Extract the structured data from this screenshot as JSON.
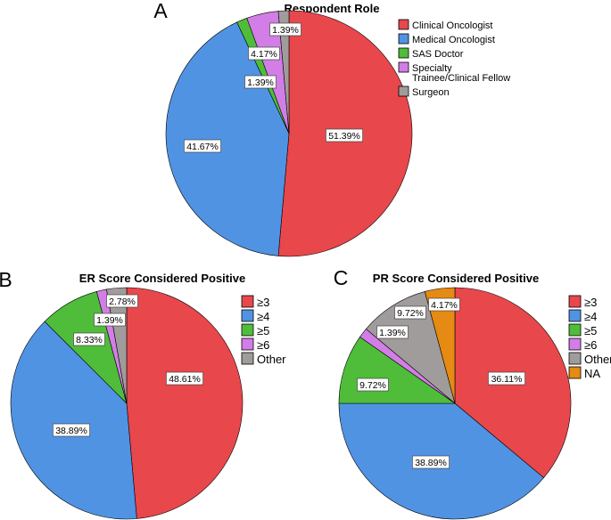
{
  "chart_data": [
    {
      "panel": "A",
      "type": "pie",
      "title": "Respondent Role",
      "labels": [
        "Clinical Oncologist",
        "Medical Oncologist",
        "SAS Doctor",
        "Specialty Trainee/Clinical Fellow",
        "Surgeon"
      ],
      "legend_lines": [
        [
          "Clinical Oncologist"
        ],
        [
          "Medical Oncologist"
        ],
        [
          "SAS Doctor"
        ],
        [
          "Specialty",
          "Trainee/Clinical Fellow"
        ],
        [
          "Surgeon"
        ]
      ],
      "values": [
        51.39,
        41.67,
        1.39,
        4.17,
        1.39
      ],
      "data_labels": [
        "51.39%",
        "41.67%",
        "1.39%",
        "4.17%",
        "1.39%"
      ],
      "colors": [
        "#e8474c",
        "#5193e3",
        "#4fbd3a",
        "#d27ee6",
        "#a09c9c"
      ],
      "legend_position": "right"
    },
    {
      "panel": "B",
      "type": "pie",
      "title": "ER Score Considered Positive",
      "labels": [
        "≥3",
        "≥4",
        "≥5",
        "≥6",
        "Other"
      ],
      "legend_lines": [
        [
          "≥3"
        ],
        [
          "≥4"
        ],
        [
          "≥5"
        ],
        [
          "≥6"
        ],
        [
          "Other"
        ]
      ],
      "values": [
        48.61,
        38.89,
        8.33,
        1.39,
        2.78
      ],
      "data_labels": [
        "48.61%",
        "38.89%",
        "8.33%",
        "1.39%",
        "2.78%"
      ],
      "colors": [
        "#e8474c",
        "#5193e3",
        "#4fbd3a",
        "#d27ee6",
        "#a09c9c"
      ],
      "legend_position": "right"
    },
    {
      "panel": "C",
      "type": "pie",
      "title": "PR Score Considered Positive",
      "labels": [
        "≥3",
        "≥4",
        "≥5",
        "≥6",
        "Other",
        "NA"
      ],
      "legend_lines": [
        [
          "≥3"
        ],
        [
          "≥4"
        ],
        [
          "≥5"
        ],
        [
          "≥6"
        ],
        [
          "Other"
        ],
        [
          "NA"
        ]
      ],
      "values": [
        36.11,
        38.89,
        9.72,
        1.39,
        9.72,
        4.17
      ],
      "data_labels": [
        "36.11%",
        "38.89%",
        "9.72%",
        "1.39%",
        "9.72%",
        "4.17%"
      ],
      "colors": [
        "#e8474c",
        "#5193e3",
        "#4fbd3a",
        "#d27ee6",
        "#a09c9c",
        "#e58a12"
      ],
      "legend_position": "right"
    }
  ]
}
